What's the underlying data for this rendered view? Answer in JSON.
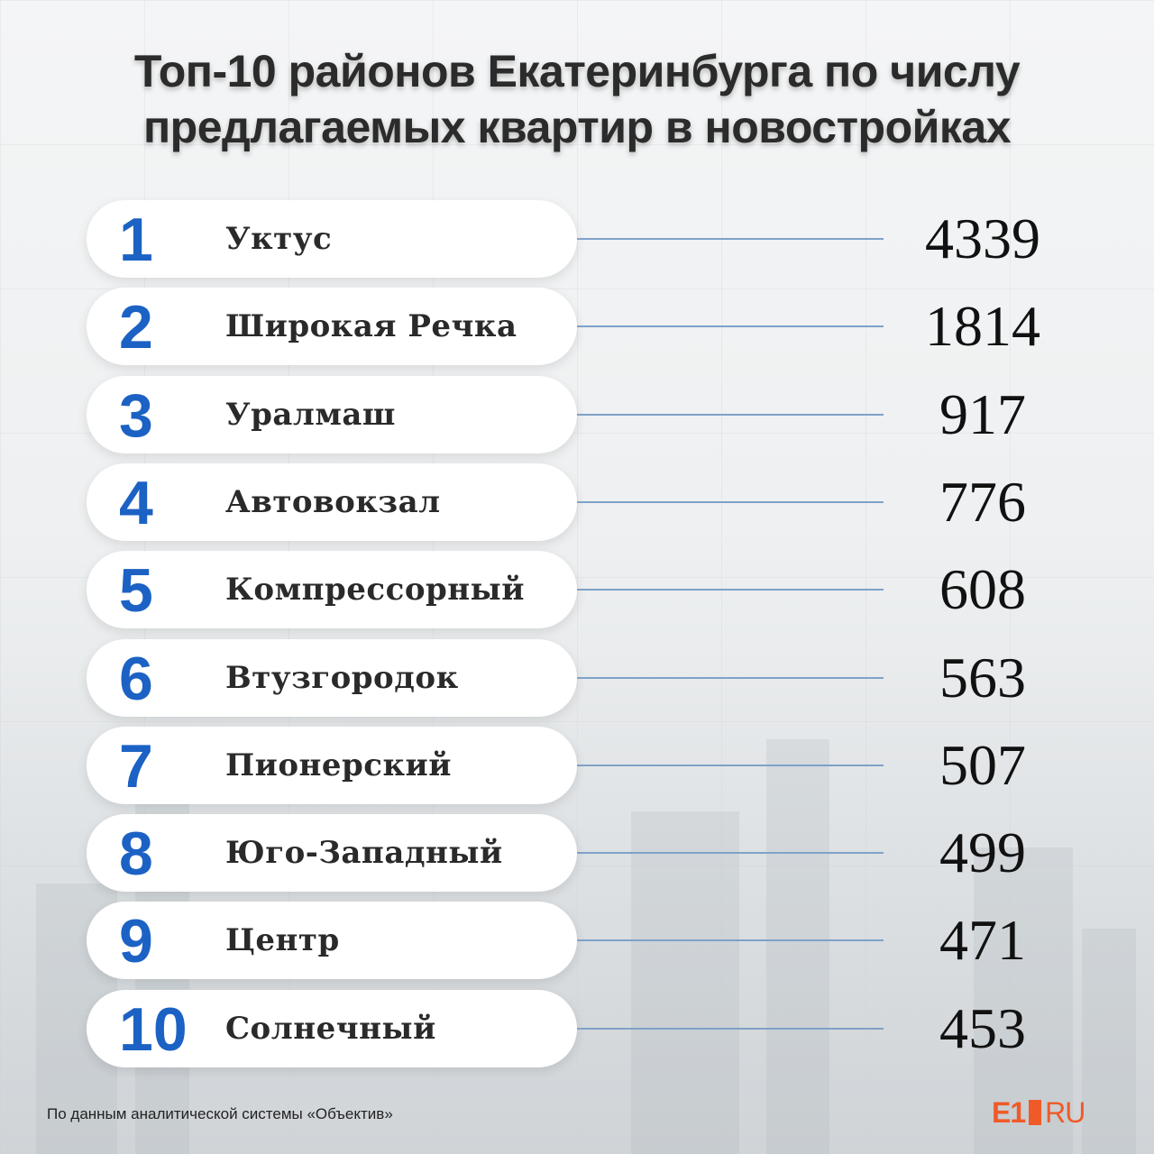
{
  "title": {
    "line1": "Топ-10 районов Екатеринбурга по числу",
    "line2": "предлагаемых квартир в новостройках"
  },
  "chart_data": {
    "type": "table",
    "title": "Топ-10 районов Екатеринбурга по числу предлагаемых квартир в новостройках",
    "columns": [
      "rank",
      "district",
      "value"
    ],
    "rows": [
      {
        "rank": "1",
        "district": "Уктус",
        "value": 4339
      },
      {
        "rank": "2",
        "district": "Широкая Речка",
        "value": 1814
      },
      {
        "rank": "3",
        "district": "Уралмаш",
        "value": 917
      },
      {
        "rank": "4",
        "district": "Автовокзал",
        "value": 776
      },
      {
        "rank": "5",
        "district": "Компрессорный",
        "value": 608
      },
      {
        "rank": "6",
        "district": "Втузгородок",
        "value": 563
      },
      {
        "rank": "7",
        "district": "Пионерский",
        "value": 507
      },
      {
        "rank": "8",
        "district": "Юго-Западный",
        "value": 499
      },
      {
        "rank": "9",
        "district": "Центр",
        "value": 471
      },
      {
        "rank": "10",
        "district": "Солнечный",
        "value": 453
      }
    ]
  },
  "colors": {
    "rank": "#1c62c4",
    "connector": "#7fa2c8",
    "logo": "#f05a28"
  },
  "footer": {
    "source": "По данным аналитической системы «Объектив»"
  },
  "logo": {
    "left": "E1",
    "right": "RU"
  }
}
